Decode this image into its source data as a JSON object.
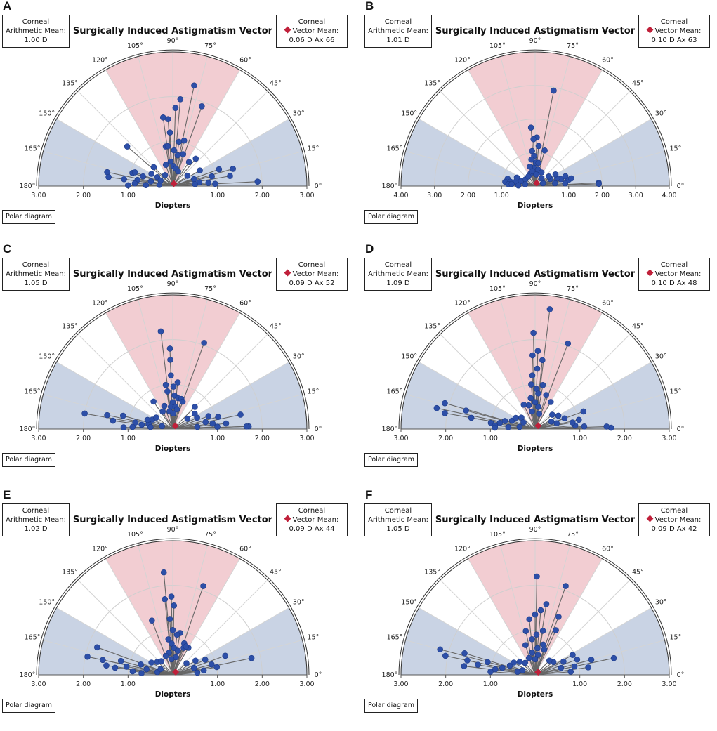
{
  "figure": {
    "labels": [
      "A",
      "B",
      "C",
      "D",
      "E",
      "F"
    ]
  },
  "common": {
    "title": "Surgically Induced Astigmatism Vector",
    "xlabel": "Diopters",
    "polar_button": "Polar diagram",
    "left_line1": "Corneal",
    "left_line2": "Arithmetic Mean:",
    "right_line1": "Corneal",
    "right_line2": "Vector Mean:",
    "angle_labels": [
      "0°",
      "15°",
      "30°",
      "45°",
      "60°",
      "75°",
      "90°",
      "105°",
      "120°",
      "135°",
      "150°",
      "165°",
      "180°"
    ],
    "colors": {
      "vertical_sector": "#f2cdd2",
      "horizontal_sector": "#c9d3e4",
      "point": "#2d4fa8",
      "mean": "#c0203a",
      "line": "#666666"
    }
  },
  "panels": [
    {
      "label": "A",
      "arithmetic_mean": "1.00 D",
      "vector_mean": "0.06 D Ax 66"
    },
    {
      "label": "B",
      "arithmetic_mean": "1.01 D",
      "vector_mean": "0.10 D Ax 63"
    },
    {
      "label": "C",
      "arithmetic_mean": "1.05 D",
      "vector_mean": "0.09 D Ax 52"
    },
    {
      "label": "D",
      "arithmetic_mean": "1.09 D",
      "vector_mean": "0.10 D Ax 48"
    },
    {
      "label": "E",
      "arithmetic_mean": "1.02 D",
      "vector_mean": "0.09 D Ax 44"
    },
    {
      "label": "F",
      "arithmetic_mean": "1.05 D",
      "vector_mean": "0.09 D Ax 42"
    }
  ],
  "chart_data": [
    {
      "type": "scatter",
      "panel": "A",
      "title": "Surgically Induced Astigmatism Vector",
      "xlabel": "Diopters",
      "axis_max": 3,
      "tick_labels": [
        "3.00",
        "2.00",
        "1.00",
        "1.00",
        "2.00",
        "3.00"
      ],
      "radial_unit": "D",
      "mean": {
        "magnitude": 0.06,
        "axis": 66
      },
      "points": [
        [
          2.3,
          78
        ],
        [
          1.95,
          85
        ],
        [
          1.9,
          70
        ],
        [
          1.75,
          88
        ],
        [
          1.55,
          98
        ],
        [
          1.5,
          94
        ],
        [
          1.2,
          93
        ],
        [
          1.0,
          82
        ],
        [
          1.05,
          76
        ],
        [
          0.9,
          100
        ],
        [
          0.9,
          97
        ],
        [
          0.8,
          88
        ],
        [
          0.7,
          81
        ],
        [
          0.75,
          72
        ],
        [
          0.65,
          56
        ],
        [
          0.8,
          50
        ],
        [
          0.55,
          95
        ],
        [
          0.5,
          108
        ],
        [
          0.45,
          88
        ],
        [
          0.4,
          80
        ],
        [
          0.35,
          70
        ],
        [
          1.4,
          16
        ],
        [
          1.3,
          10
        ],
        [
          1.1,
          20
        ],
        [
          0.9,
          14
        ],
        [
          0.8,
          5
        ],
        [
          0.95,
          3
        ],
        [
          0.6,
          8
        ],
        [
          0.5,
          18
        ],
        [
          1.9,
          3
        ],
        [
          0.7,
          30
        ],
        [
          0.4,
          35
        ],
        [
          1.35,
          139
        ],
        [
          0.95,
          162
        ],
        [
          1.5,
          168
        ],
        [
          1.45,
          172
        ],
        [
          1.1,
          172
        ],
        [
          0.8,
          170
        ],
        [
          0.9,
          160
        ],
        [
          0.7,
          162
        ],
        [
          0.5,
          168
        ],
        [
          0.55,
          150
        ],
        [
          0.6,
          135
        ],
        [
          0.4,
          150
        ],
        [
          1.0,
          179
        ],
        [
          0.85,
          176
        ],
        [
          0.6,
          178
        ],
        [
          0.3,
          175
        ],
        [
          0.3,
          155
        ],
        [
          0.3,
          125
        ],
        [
          0.5,
          5
        ]
      ]
    },
    {
      "type": "scatter",
      "panel": "B",
      "title": "Surgically Induced Astigmatism Vector",
      "xlabel": "Diopters",
      "axis_max": 4,
      "tick_labels": [
        "4.00",
        "3.00",
        "2.00",
        "1.00",
        "1.00",
        "2.00",
        "3.00",
        "4.00"
      ],
      "radial_unit": "D",
      "mean": {
        "magnitude": 0.1,
        "axis": 63
      },
      "points": [
        [
          2.9,
          79
        ],
        [
          1.75,
          94
        ],
        [
          1.45,
          88
        ],
        [
          1.4,
          92
        ],
        [
          1.2,
          85
        ],
        [
          1.1,
          75
        ],
        [
          1.05,
          95
        ],
        [
          0.9,
          92
        ],
        [
          0.8,
          98
        ],
        [
          0.7,
          88
        ],
        [
          0.7,
          82
        ],
        [
          0.55,
          95
        ],
        [
          0.5,
          80
        ],
        [
          0.6,
          105
        ],
        [
          0.45,
          65
        ],
        [
          0.4,
          110
        ],
        [
          0.45,
          100
        ],
        [
          0.35,
          85
        ],
        [
          1.9,
          3
        ],
        [
          1.9,
          2
        ],
        [
          1.0,
          10
        ],
        [
          0.8,
          15
        ],
        [
          0.7,
          20
        ],
        [
          0.9,
          5
        ],
        [
          0.6,
          8
        ],
        [
          0.5,
          25
        ],
        [
          0.5,
          35
        ],
        [
          0.85,
          165
        ],
        [
          0.9,
          172
        ],
        [
          0.75,
          170
        ],
        [
          0.8,
          176
        ],
        [
          0.6,
          168
        ],
        [
          0.7,
          175
        ],
        [
          0.45,
          160
        ],
        [
          0.6,
          155
        ],
        [
          0.35,
          145
        ],
        [
          0.35,
          125
        ],
        [
          0.5,
          178
        ],
        [
          0.3,
          170
        ],
        [
          0.25,
          20
        ],
        [
          1.1,
          12
        ],
        [
          0.95,
          18
        ],
        [
          0.7,
          30
        ],
        [
          0.3,
          50
        ]
      ]
    },
    {
      "type": "scatter",
      "panel": "C",
      "title": "Surgically Induced Astigmatism Vector",
      "xlabel": "Diopters",
      "axis_max": 3,
      "tick_labels": [
        "3.00",
        "2.00",
        "1.00",
        "1.00",
        "2.00",
        "3.00"
      ],
      "radial_unit": "D",
      "mean": {
        "magnitude": 0.09,
        "axis": 52
      },
      "points": [
        [
          2.2,
          97
        ],
        [
          2.05,
          70
        ],
        [
          1.8,
          92
        ],
        [
          1.55,
          92
        ],
        [
          1.2,
          92
        ],
        [
          1.05,
          84
        ],
        [
          1.0,
          99
        ],
        [
          0.95,
          89
        ],
        [
          0.85,
          98
        ],
        [
          0.75,
          87
        ],
        [
          0.7,
          80
        ],
        [
          0.7,
          74
        ],
        [
          0.65,
          70
        ],
        [
          0.6,
          90
        ],
        [
          0.5,
          95
        ],
        [
          0.5,
          83
        ],
        [
          0.45,
          78
        ],
        [
          0.4,
          100
        ],
        [
          0.55,
          110
        ],
        [
          0.45,
          120
        ],
        [
          0.75,
          125
        ],
        [
          0.35,
          88
        ],
        [
          1.7,
          2
        ],
        [
          1.65,
          2
        ],
        [
          1.2,
          6
        ],
        [
          1.0,
          3
        ],
        [
          0.9,
          8
        ],
        [
          1.05,
          15
        ],
        [
          0.85,
          20
        ],
        [
          0.6,
          25
        ],
        [
          0.75,
          12
        ],
        [
          0.55,
          5
        ],
        [
          1.55,
          12
        ],
        [
          0.7,
          45
        ],
        [
          0.6,
          35
        ],
        [
          0.4,
          35
        ],
        [
          2.0,
          170
        ],
        [
          1.5,
          168
        ],
        [
          1.35,
          172
        ],
        [
          1.15,
          165
        ],
        [
          0.85,
          170
        ],
        [
          0.7,
          172
        ],
        [
          0.55,
          168
        ],
        [
          0.6,
          160
        ],
        [
          0.5,
          155
        ],
        [
          0.45,
          145
        ],
        [
          1.1,
          178
        ],
        [
          0.9,
          177
        ],
        [
          0.5,
          175
        ],
        [
          0.25,
          165
        ]
      ]
    },
    {
      "type": "scatter",
      "panel": "D",
      "title": "Surgically Induced Astigmatism Vector",
      "xlabel": "Diopters",
      "axis_max": 3,
      "tick_labels": [
        "3.00",
        "2.00",
        "1.00",
        "1.00",
        "2.00",
        "3.00"
      ],
      "radial_unit": "D",
      "mean": {
        "magnitude": 0.1,
        "axis": 48
      },
      "points": [
        [
          2.7,
          83
        ],
        [
          2.15,
          91
        ],
        [
          2.05,
          69
        ],
        [
          1.75,
          88
        ],
        [
          1.65,
          92
        ],
        [
          1.55,
          84
        ],
        [
          1.35,
          88
        ],
        [
          1.2,
          93
        ],
        [
          1.0,
          80
        ],
        [
          1.0,
          95
        ],
        [
          0.9,
          88
        ],
        [
          0.8,
          85
        ],
        [
          0.8,
          72
        ],
        [
          0.7,
          98
        ],
        [
          0.7,
          60
        ],
        [
          0.6,
          90
        ],
        [
          0.5,
          82
        ],
        [
          0.55,
          105
        ],
        [
          0.6,
          115
        ],
        [
          0.4,
          100
        ],
        [
          0.35,
          75
        ],
        [
          1.7,
          1
        ],
        [
          1.6,
          2
        ],
        [
          1.15,
          20
        ],
        [
          1.0,
          12
        ],
        [
          0.9,
          5
        ],
        [
          0.85,
          10
        ],
        [
          0.7,
          20
        ],
        [
          0.6,
          30
        ],
        [
          0.5,
          15
        ],
        [
          1.1,
          3
        ],
        [
          0.5,
          40
        ],
        [
          2.25,
          168
        ],
        [
          2.1,
          164
        ],
        [
          2.05,
          170
        ],
        [
          1.6,
          165
        ],
        [
          1.45,
          170
        ],
        [
          1.0,
          172
        ],
        [
          0.9,
          175
        ],
        [
          0.8,
          170
        ],
        [
          0.7,
          165
        ],
        [
          0.55,
          160
        ],
        [
          0.5,
          150
        ],
        [
          0.4,
          140
        ],
        [
          0.35,
          172
        ],
        [
          0.9,
          178
        ],
        [
          0.6,
          176
        ],
        [
          0.3,
          150
        ],
        [
          0.4,
          25
        ]
      ]
    },
    {
      "type": "scatter",
      "panel": "E",
      "title": "Surgically Induced Astigmatism Vector",
      "xlabel": "Diopters",
      "axis_max": 3,
      "tick_labels": [
        "3.00",
        "2.00",
        "1.00",
        "1.00",
        "2.00",
        "3.00"
      ],
      "radial_unit": "D",
      "mean": {
        "magnitude": 0.09,
        "axis": 44
      },
      "points": [
        [
          2.3,
          95
        ],
        [
          2.1,
          71
        ],
        [
          1.75,
          91
        ],
        [
          1.7,
          96
        ],
        [
          1.55,
          89
        ],
        [
          1.3,
          111
        ],
        [
          1.25,
          93
        ],
        [
          1.0,
          90
        ],
        [
          0.95,
          80
        ],
        [
          0.9,
          84
        ],
        [
          0.8,
          97
        ],
        [
          0.75,
          70
        ],
        [
          0.7,
          92
        ],
        [
          0.7,
          60
        ],
        [
          0.6,
          87
        ],
        [
          0.65,
          68
        ],
        [
          0.55,
          78
        ],
        [
          0.5,
          100
        ],
        [
          0.45,
          110
        ],
        [
          0.4,
          80
        ],
        [
          0.35,
          95
        ],
        [
          0.7,
          65
        ],
        [
          1.8,
          12
        ],
        [
          1.25,
          20
        ],
        [
          1.0,
          10
        ],
        [
          0.9,
          15
        ],
        [
          0.8,
          25
        ],
        [
          0.7,
          8
        ],
        [
          0.6,
          32
        ],
        [
          0.5,
          18
        ],
        [
          0.55,
          5
        ],
        [
          0.4,
          40
        ],
        [
          1.95,
          168
        ],
        [
          1.8,
          160
        ],
        [
          1.6,
          168
        ],
        [
          1.5,
          172
        ],
        [
          1.2,
          165
        ],
        [
          1.05,
          170
        ],
        [
          0.9,
          175
        ],
        [
          0.75,
          162
        ],
        [
          0.6,
          168
        ],
        [
          0.55,
          150
        ],
        [
          0.45,
          140
        ],
        [
          0.4,
          130
        ],
        [
          1.3,
          173
        ],
        [
          0.7,
          177
        ],
        [
          0.35,
          170
        ],
        [
          0.3,
          155
        ]
      ]
    },
    {
      "type": "scatter",
      "panel": "F",
      "title": "Surgically Induced Astigmatism Vector",
      "xlabel": "Diopters",
      "axis_max": 3,
      "tick_labels": [
        "3.00",
        "2.00",
        "1.00",
        "1.00",
        "2.00",
        "3.00"
      ],
      "radial_unit": "D",
      "mean": {
        "magnitude": 0.09,
        "axis": 42
      },
      "points": [
        [
          2.2,
          89
        ],
        [
          2.1,
          71
        ],
        [
          1.6,
          81
        ],
        [
          1.45,
          85
        ],
        [
          1.4,
          68
        ],
        [
          1.35,
          90
        ],
        [
          1.25,
          96
        ],
        [
          1.1,
          65
        ],
        [
          1.0,
          80
        ],
        [
          1.0,
          102
        ],
        [
          0.9,
          88
        ],
        [
          0.8,
          95
        ],
        [
          0.7,
          75
        ],
        [
          0.7,
          108
        ],
        [
          0.6,
          85
        ],
        [
          0.6,
          70
        ],
        [
          0.5,
          98
        ],
        [
          0.45,
          82
        ],
        [
          0.4,
          110
        ],
        [
          0.35,
          90
        ],
        [
          1.8,
          12
        ],
        [
          1.3,
          15
        ],
        [
          1.2,
          8
        ],
        [
          1.0,
          20
        ],
        [
          0.9,
          12
        ],
        [
          0.8,
          5
        ],
        [
          0.7,
          25
        ],
        [
          0.6,
          15
        ],
        [
          0.5,
          35
        ],
        [
          0.45,
          45
        ],
        [
          0.95,
          28
        ],
        [
          2.2,
          165
        ],
        [
          2.05,
          168
        ],
        [
          1.65,
          163
        ],
        [
          1.55,
          168
        ],
        [
          1.3,
          170
        ],
        [
          1.1,
          165
        ],
        [
          0.9,
          172
        ],
        [
          0.75,
          168
        ],
        [
          0.6,
          160
        ],
        [
          0.55,
          150
        ],
        [
          0.45,
          140
        ],
        [
          0.35,
          130
        ],
        [
          1.6,
          173
        ],
        [
          1.0,
          176
        ],
        [
          0.4,
          170
        ],
        [
          0.3,
          160
        ]
      ]
    }
  ]
}
